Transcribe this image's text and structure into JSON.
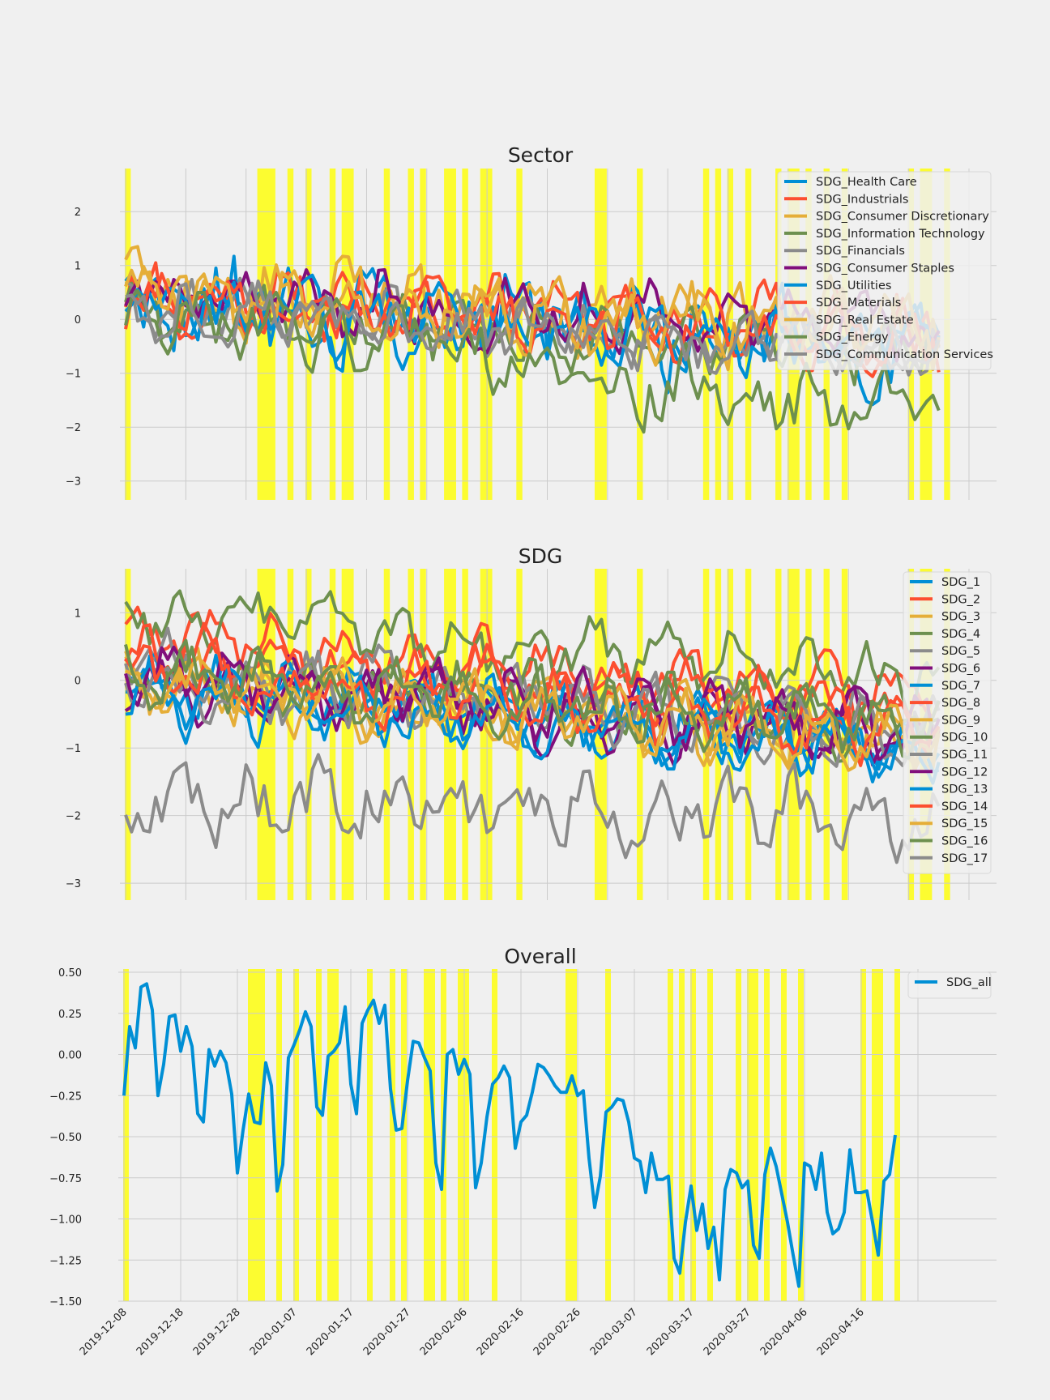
{
  "figure": {
    "background": "#f0f0f0",
    "grid": true,
    "style": "fivethirtyeight",
    "highlight_color": "#ffff00"
  },
  "chart_data": [
    {
      "type": "line",
      "title": "Sector",
      "xlabel": "",
      "ylabel": "",
      "ylim": [
        -3.35,
        2.8
      ],
      "yticks": [
        -3,
        -2,
        -1,
        0,
        1,
        2
      ],
      "ytick_labels": [
        "−3",
        "−2",
        "−1",
        "0",
        "1",
        "2"
      ],
      "legend": "top-right",
      "series": [
        {
          "name": "SDG_Health Care",
          "color": "#008fd5",
          "seed": 11,
          "base": 0.35,
          "trend": -0.85,
          "amp": 0.75
        },
        {
          "name": "SDG_Industrials",
          "color": "#fc4f30",
          "seed": 12,
          "base": 0.5,
          "trend": -0.8,
          "amp": 0.5
        },
        {
          "name": "SDG_Consumer Discretionary",
          "color": "#e5ae38",
          "seed": 13,
          "base": 0.6,
          "trend": -0.8,
          "amp": 0.55
        },
        {
          "name": "SDG_Information Technology",
          "color": "#6d904f",
          "seed": 14,
          "base": 0.2,
          "trend": -0.8,
          "amp": 0.45
        },
        {
          "name": "SDG_Financials",
          "color": "#8b8b8b",
          "seed": 15,
          "base": 0.3,
          "trend": -0.9,
          "amp": 0.4
        },
        {
          "name": "SDG_Consumer Staples",
          "color": "#810f7c",
          "seed": 16,
          "base": 0.6,
          "trend": -0.8,
          "amp": 0.45
        },
        {
          "name": "SDG_Utilities",
          "color": "#008fd5",
          "seed": 17,
          "base": 0.3,
          "trend": -0.8,
          "amp": 0.45
        },
        {
          "name": "SDG_Materials",
          "color": "#fc4f30",
          "seed": 18,
          "base": 0.4,
          "trend": -0.8,
          "amp": 0.45
        },
        {
          "name": "SDG_Real Estate",
          "color": "#e5ae38",
          "seed": 19,
          "base": 0.5,
          "trend": -0.8,
          "amp": 0.5
        },
        {
          "name": "SDG_Energy",
          "color": "#6d904f",
          "seed": 20,
          "base": 0.1,
          "trend": -2.0,
          "amp": 0.5
        },
        {
          "name": "SDG_Communication Services",
          "color": "#8b8b8b",
          "seed": 21,
          "base": 0.2,
          "trend": -0.8,
          "amp": 0.4
        }
      ]
    },
    {
      "type": "line",
      "title": "SDG",
      "xlabel": "",
      "ylabel": "",
      "ylim": [
        -3.25,
        1.65
      ],
      "yticks": [
        -3,
        -2,
        -1,
        0,
        1
      ],
      "ytick_labels": [
        "−3",
        "−2",
        "−1",
        "0",
        "1"
      ],
      "legend": "top-right",
      "series": [
        {
          "name": "SDG_1",
          "color": "#008fd5",
          "seed": 31,
          "base": -0.1,
          "trend": -0.9,
          "amp": 0.3
        },
        {
          "name": "SDG_2",
          "color": "#fc4f30",
          "seed": 32,
          "base": 0.7,
          "trend": -1.0,
          "amp": 0.25
        },
        {
          "name": "SDG_3",
          "color": "#e5ae38",
          "seed": 33,
          "base": -0.1,
          "trend": -0.9,
          "amp": 0.3
        },
        {
          "name": "SDG_4",
          "color": "#6d904f",
          "seed": 34,
          "base": 1.1,
          "trend": -1.2,
          "amp": 0.3
        },
        {
          "name": "SDG_5",
          "color": "#8b8b8b",
          "seed": 35,
          "base": 0.2,
          "trend": -0.9,
          "amp": 0.3
        },
        {
          "name": "SDG_6",
          "color": "#810f7c",
          "seed": 36,
          "base": 0.0,
          "trend": -0.9,
          "amp": 0.3
        },
        {
          "name": "SDG_7",
          "color": "#008fd5",
          "seed": 37,
          "base": -0.1,
          "trend": -0.9,
          "amp": 0.3
        },
        {
          "name": "SDG_8",
          "color": "#fc4f30",
          "seed": 38,
          "base": 0.4,
          "trend": -0.9,
          "amp": 0.3
        },
        {
          "name": "SDG_9",
          "color": "#e5ae38",
          "seed": 39,
          "base": 0.0,
          "trend": -0.9,
          "amp": 0.3
        },
        {
          "name": "SDG_10",
          "color": "#6d904f",
          "seed": 40,
          "base": 0.1,
          "trend": -0.8,
          "amp": 0.3
        },
        {
          "name": "SDG_11",
          "color": "#8b8b8b",
          "seed": 41,
          "base": 0.0,
          "trend": -0.8,
          "amp": 0.3
        },
        {
          "name": "SDG_12",
          "color": "#810f7c",
          "seed": 42,
          "base": 0.1,
          "trend": -0.9,
          "amp": 0.3
        },
        {
          "name": "SDG_13",
          "color": "#008fd5",
          "seed": 43,
          "base": -0.2,
          "trend": -0.9,
          "amp": 0.3
        },
        {
          "name": "SDG_14",
          "color": "#fc4f30",
          "seed": 44,
          "base": 0.1,
          "trend": -0.9,
          "amp": 0.3
        },
        {
          "name": "SDG_15",
          "color": "#e5ae38",
          "seed": 45,
          "base": 0.0,
          "trend": -0.9,
          "amp": 0.3
        },
        {
          "name": "SDG_16",
          "color": "#6d904f",
          "seed": 46,
          "base": 0.1,
          "trend": -0.8,
          "amp": 0.3
        },
        {
          "name": "SDG_17",
          "color": "#8b8b8b",
          "seed": 47,
          "base": -1.8,
          "trend": -0.2,
          "amp": 0.4
        }
      ]
    },
    {
      "type": "line",
      "title": "Overall",
      "xlabel": "",
      "ylabel": "",
      "ylim": [
        -1.5,
        0.52
      ],
      "yticks": [
        -1.5,
        -1.25,
        -1.0,
        -0.75,
        -0.5,
        -0.25,
        0.0,
        0.25,
        0.5
      ],
      "ytick_labels": [
        "−1.50",
        "−1.25",
        "−1.00",
        "−0.75",
        "−0.50",
        "−0.25",
        "0.00",
        "0.25",
        "0.50"
      ],
      "legend": "top-right",
      "series": [
        {
          "name": "SDG_all",
          "color": "#008fd5",
          "values": [
            -0.25,
            0.17,
            0.04,
            0.41,
            0.43,
            0.27,
            -0.25,
            -0.06,
            0.23,
            0.24,
            0.02,
            0.17,
            0.05,
            -0.36,
            -0.41,
            0.03,
            -0.07,
            0.02,
            -0.05,
            -0.24,
            -0.72,
            -0.46,
            -0.24,
            -0.41,
            -0.42,
            -0.05,
            -0.19,
            -0.83,
            -0.67,
            -0.02,
            0.06,
            0.15,
            0.26,
            0.17,
            -0.32,
            -0.37,
            -0.01,
            0.02,
            0.07,
            0.29,
            -0.18,
            -0.36,
            0.19,
            0.27,
            0.33,
            0.19,
            0.3,
            -0.21,
            -0.46,
            -0.45,
            -0.16,
            0.08,
            0.07,
            -0.02,
            -0.1,
            -0.66,
            -0.82,
            0.0,
            0.03,
            -0.12,
            -0.03,
            -0.12,
            -0.81,
            -0.66,
            -0.38,
            -0.18,
            -0.14,
            -0.07,
            -0.14,
            -0.57,
            -0.41,
            -0.37,
            -0.23,
            -0.06,
            -0.08,
            -0.13,
            -0.19,
            -0.23,
            -0.23,
            -0.13,
            -0.25,
            -0.22,
            -0.63,
            -0.93,
            -0.74,
            -0.35,
            -0.32,
            -0.27,
            -0.28,
            -0.41,
            -0.63,
            -0.65,
            -0.84,
            -0.6,
            -0.76,
            -0.76,
            -0.74,
            -1.24,
            -1.33,
            -1.02,
            -0.8,
            -1.07,
            -0.91,
            -1.18,
            -1.05,
            -1.37,
            -0.82,
            -0.7,
            -0.72,
            -0.81,
            -0.77,
            -1.16,
            -1.24,
            -0.73,
            -0.57,
            -0.68,
            -0.85,
            -1.02,
            -1.22,
            -1.41,
            -0.66,
            -0.68,
            -0.82,
            -0.6,
            -0.96,
            -1.09,
            -1.06,
            -0.96,
            -0.58,
            -0.84,
            -0.84,
            -0.83,
            -1.02,
            -1.22,
            -0.77,
            -0.73,
            -0.49
          ]
        }
      ]
    }
  ],
  "x_axis": {
    "start_date": "2019-12-08",
    "ticks": [
      "2019-12-08",
      "2019-12-18",
      "2019-12-28",
      "2020-01-07",
      "2020-01-17",
      "2020-01-27",
      "2020-02-06",
      "2020-02-16",
      "2020-02-26",
      "2020-03-07",
      "2020-03-17",
      "2020-03-27",
      "2020-04-06",
      "2020-04-16"
    ]
  },
  "highlight_days": [
    [
      0,
      1
    ],
    [
      22,
      25
    ],
    [
      27,
      28
    ],
    [
      30,
      31
    ],
    [
      34,
      35
    ],
    [
      36,
      38
    ],
    [
      43,
      44
    ],
    [
      47,
      48
    ],
    [
      49,
      50
    ],
    [
      53,
      55
    ],
    [
      56,
      57
    ],
    [
      59,
      61
    ],
    [
      65,
      66
    ],
    [
      78,
      80
    ],
    [
      85,
      86
    ],
    [
      96,
      97
    ],
    [
      98,
      99
    ],
    [
      100,
      101
    ],
    [
      103,
      104
    ],
    [
      108,
      109
    ],
    [
      110,
      112
    ],
    [
      113,
      114
    ],
    [
      116,
      117
    ],
    [
      119,
      120
    ],
    [
      130,
      131
    ],
    [
      132,
      134
    ],
    [
      136,
      137
    ]
  ]
}
